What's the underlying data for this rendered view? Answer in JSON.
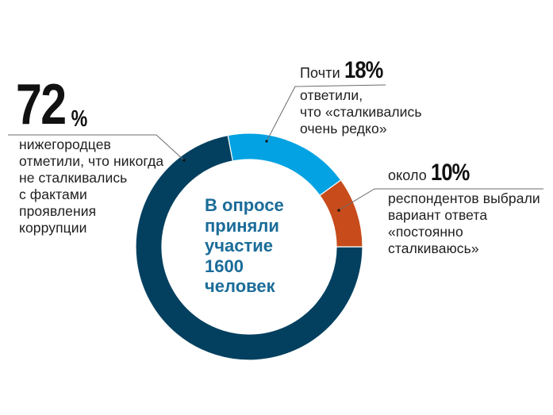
{
  "chart_data": {
    "type": "pie",
    "subtype": "donut",
    "title": "",
    "center_text": [
      "В опросе",
      "приняли",
      "участие",
      "1600",
      "человек"
    ],
    "total_respondents": 1600,
    "categories": [
      "никогда не сталкивались с фактами проявления коррупции",
      "сталкивались очень редко",
      "постоянно сталкиваюсь"
    ],
    "values": [
      72,
      18,
      10
    ],
    "unit": "%",
    "colors": [
      "#03405f",
      "#03a2e2",
      "#c74b1b"
    ],
    "legend": "none (callout annotations)",
    "annotations": [
      {
        "prefix": "",
        "value": "72",
        "suffix": "%",
        "text": [
          "нижегородцев",
          "отметили, что никогда",
          "не сталкивались",
          "с фактами",
          "проявления",
          "коррупции"
        ]
      },
      {
        "prefix": "Почти",
        "value": "18%",
        "text": [
          "ответили,",
          "что «сталкивались",
          "очень редко»"
        ]
      },
      {
        "prefix": "около",
        "value": "10%",
        "text": [
          "респондентов выбрали",
          "вариант ответа",
          "«постоянно",
          "сталкиваюсь»"
        ]
      }
    ]
  },
  "callouts": {
    "never": {
      "number": "72",
      "percent": "%",
      "lines": [
        "нижегородцев",
        "отметили, что никогда",
        "не сталкивались",
        "с фактами",
        "проявления",
        "коррупции"
      ]
    },
    "rarely": {
      "prefix": "Почти",
      "number": "18%",
      "lines": [
        "ответили,",
        "что «сталкивались",
        "очень редко»"
      ]
    },
    "constantly": {
      "prefix": "около",
      "number": "10%",
      "lines": [
        "респондентов выбрали",
        "вариант ответа",
        "«постоянно",
        "сталкиваюсь»"
      ]
    }
  },
  "center": {
    "lines": [
      "В опросе",
      "приняли",
      "участие",
      "1600",
      "человек"
    ]
  },
  "colors": {
    "never": "#03405f",
    "rarely": "#03a2e2",
    "constantly": "#c74b1b",
    "center_text": "#1b6c99",
    "leader": "#6b6b6b"
  }
}
